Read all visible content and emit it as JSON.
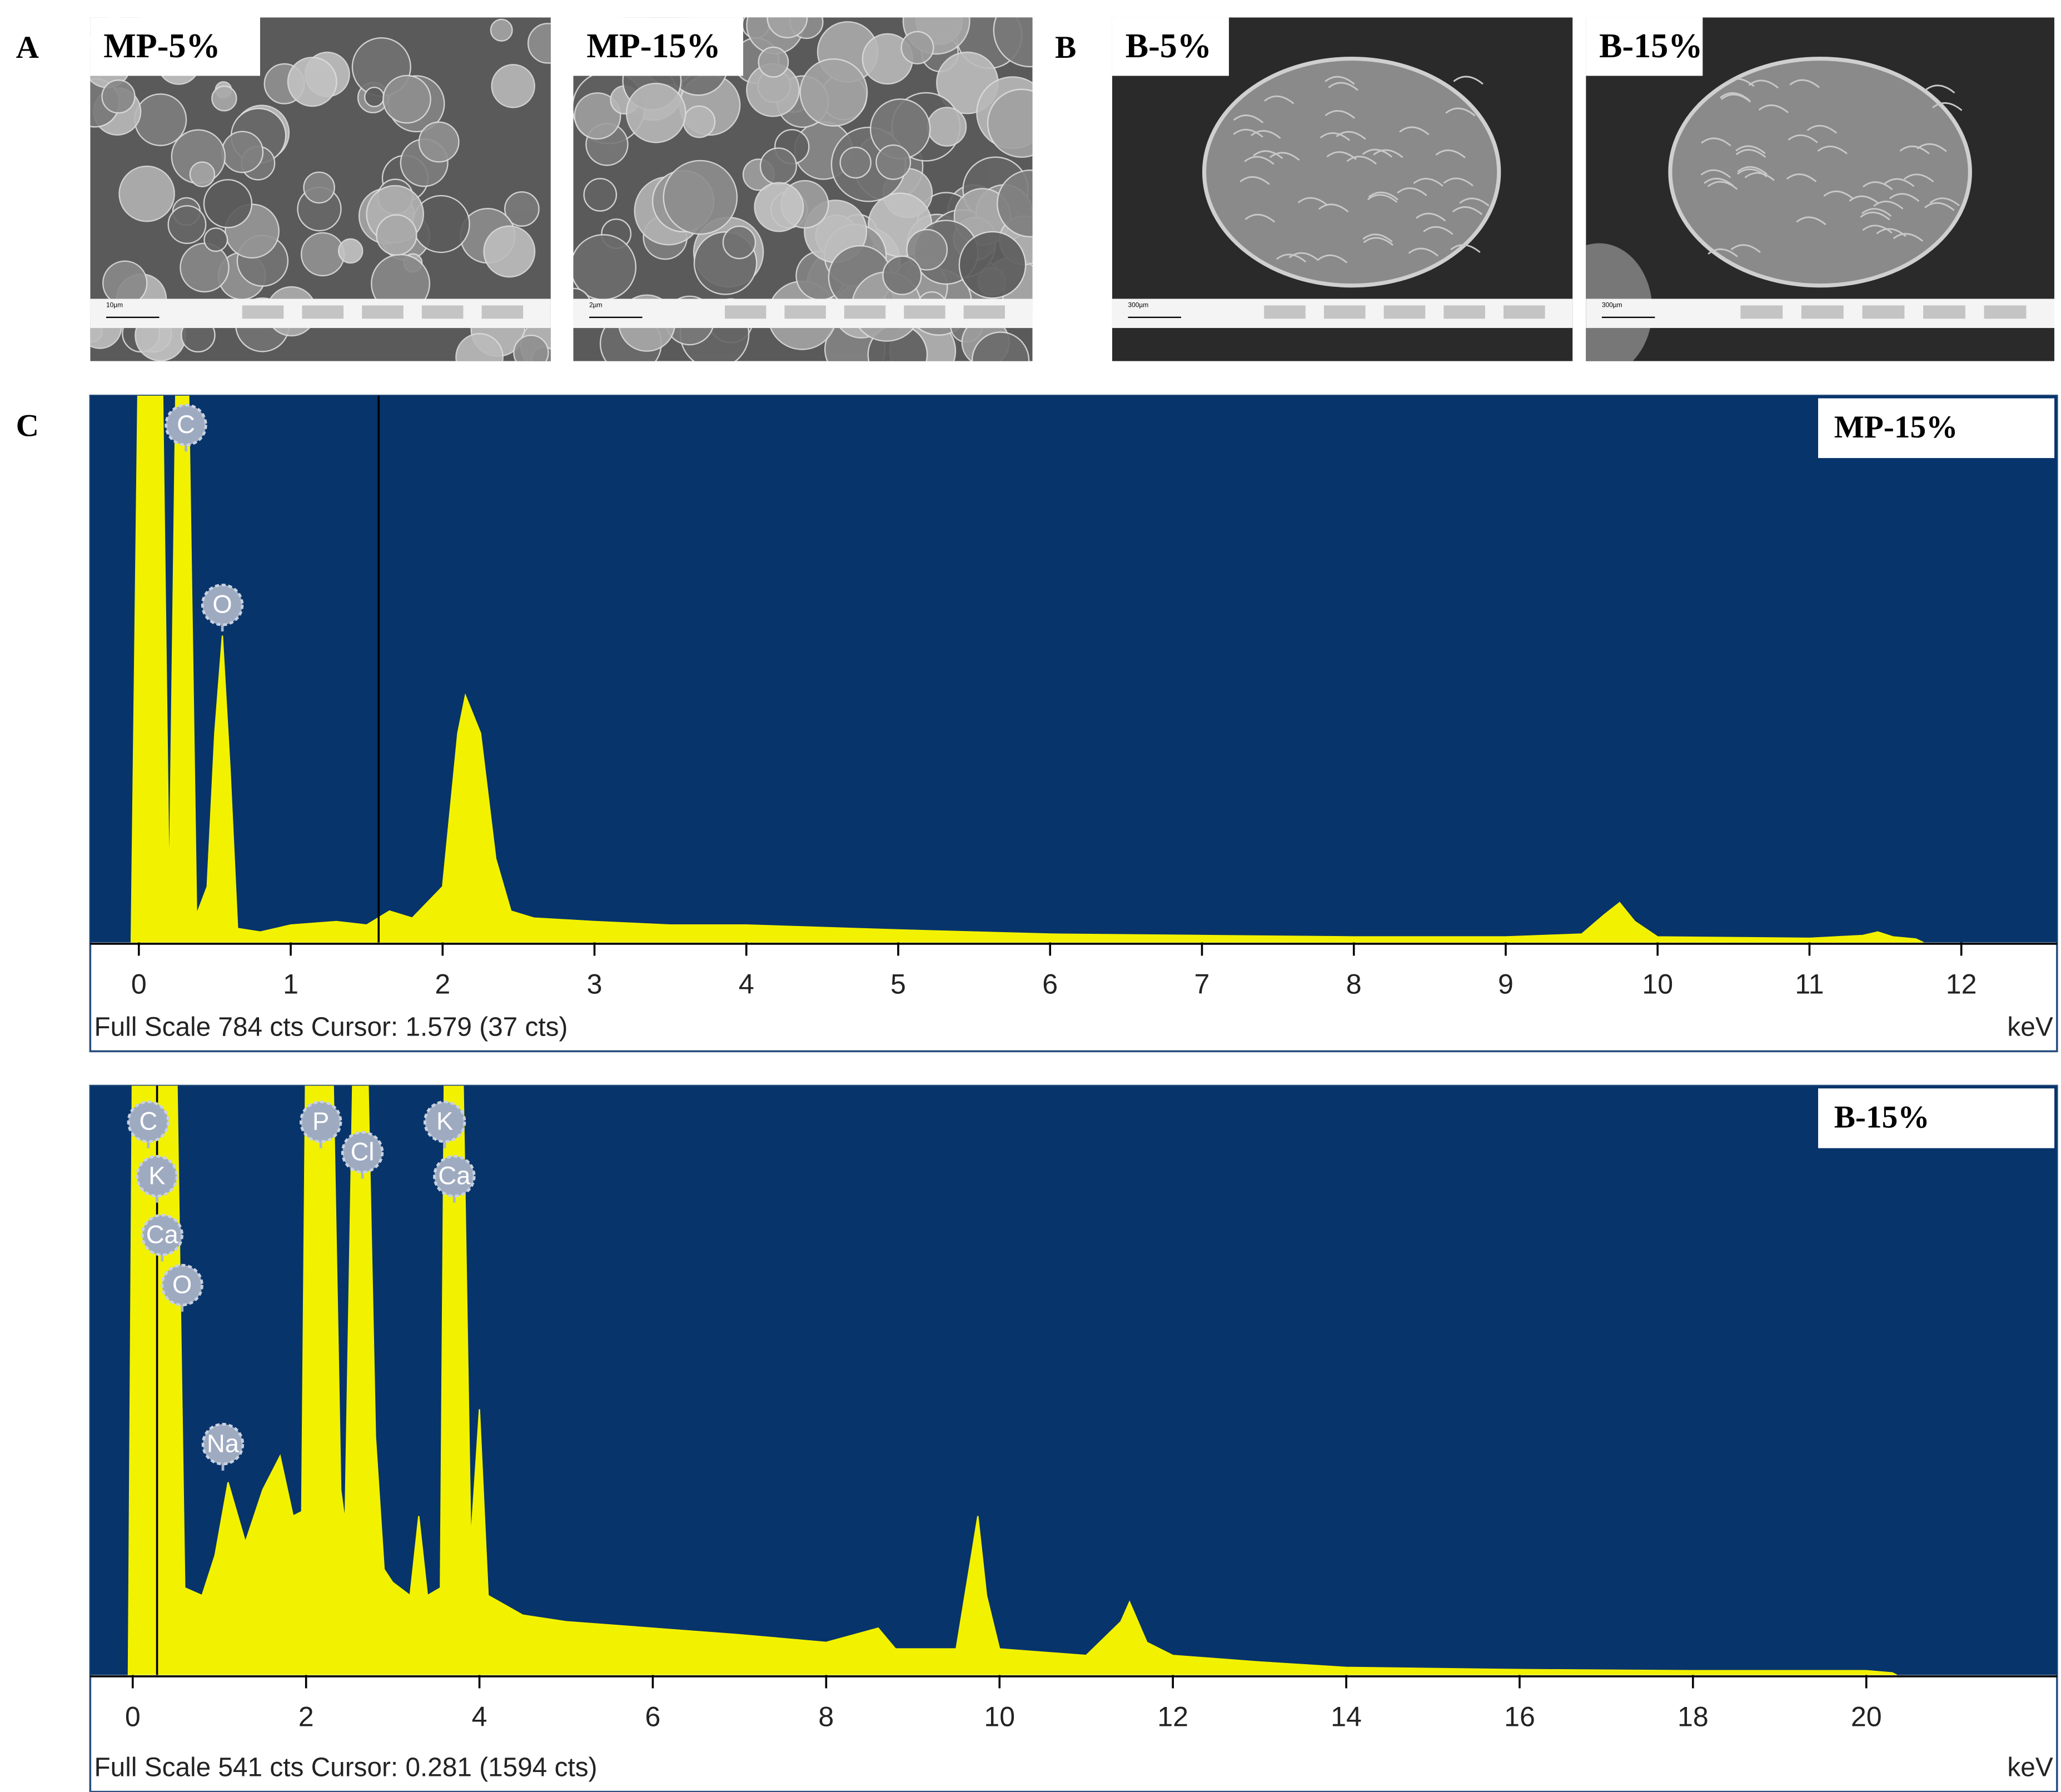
{
  "panels": {
    "a": "A",
    "b": "B",
    "c": "C"
  },
  "sem_images": [
    {
      "label": "MP-5%",
      "scale": "10µm"
    },
    {
      "label": "MP-15%",
      "scale": "2µm"
    },
    {
      "label": "B-5%",
      "scale": "300µm"
    },
    {
      "label": "B-15%",
      "scale": "300µm"
    }
  ],
  "chart_data": [
    {
      "type": "area",
      "title": "MP-15%",
      "color": "#f2f200",
      "background": "#07346a",
      "footer": "Full Scale 784 cts Cursor: 1.579  (37 cts)",
      "unit": "keV",
      "cursor": 1.579,
      "xlim": [
        -0.32,
        12.63
      ],
      "ylim": [
        0,
        784
      ],
      "xticks": [
        0,
        1,
        2,
        3,
        4,
        5,
        6,
        7,
        8,
        9,
        10,
        11,
        12
      ],
      "x": [
        -0.05,
        0.0,
        0.15,
        0.2,
        0.25,
        0.32,
        0.38,
        0.45,
        0.5,
        0.55,
        0.6,
        0.65,
        0.8,
        1.0,
        1.3,
        1.5,
        1.65,
        1.8,
        2.0,
        2.1,
        2.15,
        2.25,
        2.35,
        2.45,
        2.6,
        3.0,
        3.5,
        4.0,
        5.0,
        6.0,
        7.0,
        8.0,
        9.0,
        9.5,
        9.65,
        9.75,
        9.85,
        10.0,
        11.0,
        11.35,
        11.45,
        11.55,
        11.7,
        11.75
      ],
      "values": [
        0,
        900,
        900,
        60,
        900,
        900,
        40,
        80,
        300,
        440,
        250,
        20,
        15,
        25,
        30,
        25,
        45,
        35,
        80,
        300,
        354,
        300,
        120,
        45,
        35,
        30,
        25,
        25,
        18,
        12,
        10,
        8,
        8,
        12,
        40,
        57,
        30,
        8,
        6,
        10,
        15,
        8,
        5,
        0
      ],
      "annotations": [
        {
          "label": "C",
          "x": 0.31,
          "y": 742
        },
        {
          "label": "O",
          "x": 0.55,
          "y": 484
        }
      ]
    },
    {
      "type": "area",
      "title": "B-15%",
      "color": "#f2f200",
      "background": "#07346a",
      "footer": "Full Scale 541 cts Cursor: 0.281  (1594 cts)",
      "unit": "keV",
      "cursor": 0.281,
      "xlim": [
        -0.49,
        22.2
      ],
      "ylim": [
        0,
        541
      ],
      "xticks": [
        0,
        2,
        4,
        6,
        8,
        10,
        12,
        14,
        16,
        18,
        20
      ],
      "x": [
        -0.05,
        0.0,
        0.5,
        0.6,
        0.8,
        0.95,
        1.1,
        1.3,
        1.5,
        1.7,
        1.85,
        1.95,
        2.0,
        2.3,
        2.4,
        2.45,
        2.55,
        2.7,
        2.8,
        2.9,
        3.0,
        3.2,
        3.3,
        3.4,
        3.55,
        3.6,
        3.8,
        3.9,
        4.0,
        4.1,
        4.5,
        5.0,
        6.0,
        7.0,
        8.0,
        8.6,
        8.8,
        9.5,
        9.65,
        9.75,
        9.85,
        10.0,
        11.0,
        11.4,
        11.5,
        11.7,
        12.0,
        13.0,
        14.0,
        16.0,
        18.0,
        20.0,
        20.3,
        20.35
      ],
      "values": [
        0,
        600,
        600,
        80,
        73,
        110,
        177,
        122,
        170,
        201,
        146,
        150,
        600,
        600,
        170,
        140,
        600,
        600,
        219,
        97,
        85,
        73,
        146,
        73,
        80,
        600,
        600,
        122,
        244,
        73,
        55,
        49,
        43,
        37,
        30,
        43,
        24,
        24,
        97,
        146,
        73,
        24,
        18,
        49,
        67,
        30,
        18,
        12,
        7,
        5,
        4,
        4,
        2,
        0
      ],
      "annotations": [
        {
          "label": "C",
          "x": 0.18,
          "y": 508
        },
        {
          "label": "K",
          "x": 0.28,
          "y": 458
        },
        {
          "label": "Ca",
          "x": 0.34,
          "y": 404
        },
        {
          "label": "O",
          "x": 0.57,
          "y": 358
        },
        {
          "label": "Na",
          "x": 1.04,
          "y": 212
        },
        {
          "label": "P",
          "x": 2.17,
          "y": 508
        },
        {
          "label": "Cl",
          "x": 2.65,
          "y": 480
        },
        {
          "label": "K",
          "x": 3.6,
          "y": 508
        },
        {
          "label": "Ca",
          "x": 3.71,
          "y": 458
        }
      ]
    }
  ]
}
